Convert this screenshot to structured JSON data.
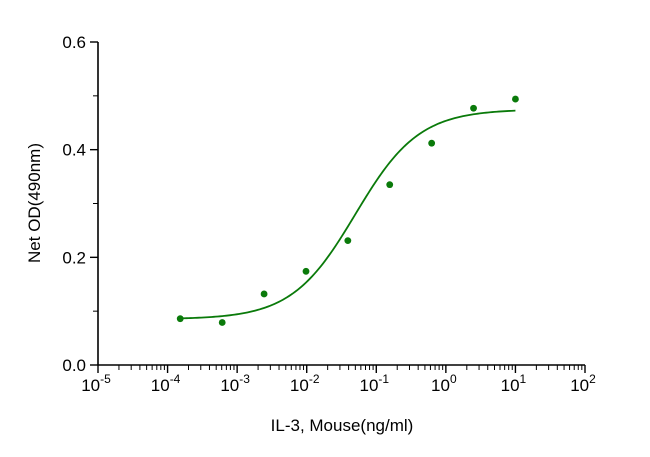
{
  "chart_data": {
    "type": "scatter",
    "title": "",
    "xlabel": "IL-3, Mouse(ng/ml)",
    "ylabel": "Net OD(490nm)",
    "x_scale": "log10",
    "xlim": [
      1e-05,
      100
    ],
    "ylim": [
      0.0,
      0.6
    ],
    "x_ticks": [
      {
        "base": "10",
        "exp": "-5",
        "value": 1e-05
      },
      {
        "base": "10",
        "exp": "-4",
        "value": 0.0001
      },
      {
        "base": "10",
        "exp": "-3",
        "value": 0.001
      },
      {
        "base": "10",
        "exp": "-2",
        "value": 0.01
      },
      {
        "base": "10",
        "exp": "-1",
        "value": 0.1
      },
      {
        "base": "10",
        "exp": "0",
        "value": 1
      },
      {
        "base": "10",
        "exp": "1",
        "value": 10
      },
      {
        "base": "10",
        "exp": "2",
        "value": 100
      }
    ],
    "y_ticks": [
      {
        "label": "0.0",
        "value": 0.0
      },
      {
        "label": "0.2",
        "value": 0.2
      },
      {
        "label": "0.4",
        "value": 0.4
      },
      {
        "label": "0.6",
        "value": 0.6
      }
    ],
    "grid": false,
    "series": [
      {
        "color": "#0a7a0a",
        "points": [
          {
            "x": 0.000152,
            "y": 0.086
          },
          {
            "x": 0.00061,
            "y": 0.079
          },
          {
            "x": 0.00244,
            "y": 0.132
          },
          {
            "x": 0.00977,
            "y": 0.174
          },
          {
            "x": 0.039,
            "y": 0.231
          },
          {
            "x": 0.156,
            "y": 0.335
          },
          {
            "x": 0.625,
            "y": 0.412
          },
          {
            "x": 2.5,
            "y": 0.477
          },
          {
            "x": 10,
            "y": 0.494
          }
        ],
        "fit": {
          "model": "4PL",
          "bottom": 0.085,
          "top": 0.475,
          "ec50": 0.05,
          "hill": 0.95,
          "x_range": [
            0.000152,
            10
          ]
        }
      }
    ]
  }
}
